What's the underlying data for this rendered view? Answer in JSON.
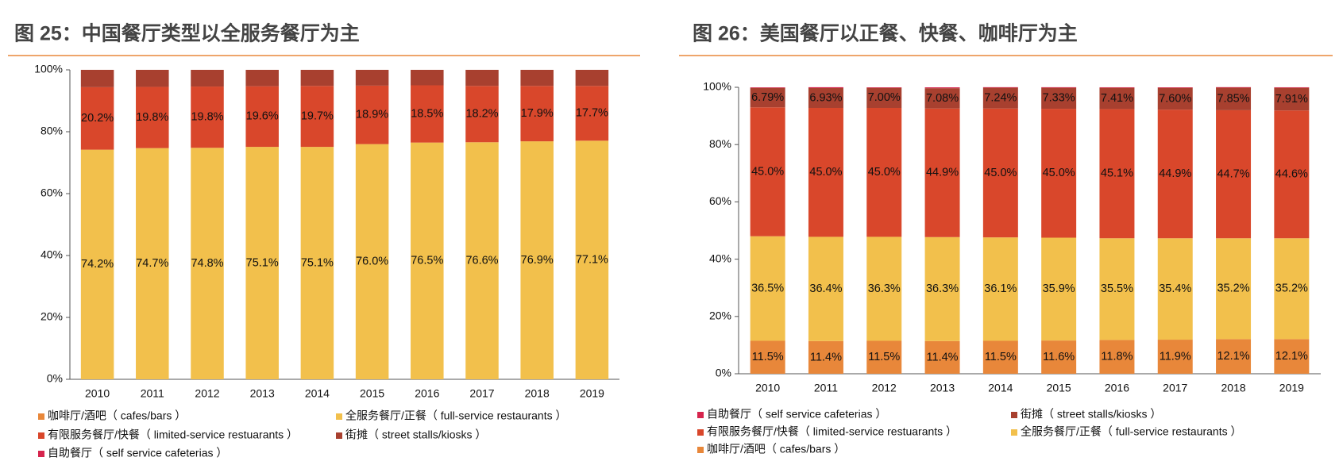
{
  "chart_data": [
    {
      "type": "stacked_bar",
      "title": "图 25：中国餐厅类型以全服务餐厅为主",
      "categories": [
        "2010",
        "2011",
        "2012",
        "2013",
        "2014",
        "2015",
        "2016",
        "2017",
        "2018",
        "2019"
      ],
      "ylim": [
        0,
        100
      ],
      "yticks": [
        {
          "value": 0,
          "label": "0%"
        },
        {
          "value": 20,
          "label": "20%"
        },
        {
          "value": 40,
          "label": "40%"
        },
        {
          "value": 60,
          "label": "60%"
        },
        {
          "value": 80,
          "label": "80%"
        },
        {
          "value": 100,
          "label": "100%"
        }
      ],
      "legend_reversed": false,
      "series": [
        {
          "name": "咖啡厅/酒吧（ cafes/bars ）",
          "color": "#e8873a",
          "values": [
            0,
            0,
            0,
            0,
            0,
            0,
            0,
            0,
            0,
            0
          ]
        },
        {
          "name": "全服务餐厅/正餐（ full-service restaurants ）",
          "color": "#f2c04c",
          "values": [
            74.2,
            74.7,
            74.8,
            75.1,
            75.1,
            76.0,
            76.5,
            76.6,
            76.9,
            77.1
          ],
          "value_labels": [
            "74.2%",
            "74.7%",
            "74.8%",
            "75.1%",
            "75.1%",
            "76.0%",
            "76.5%",
            "76.6%",
            "76.9%",
            "77.1%"
          ]
        },
        {
          "name": "有限服务餐厅/快餐（ limited-service restuarants ）",
          "color": "#d9472b",
          "values": [
            20.2,
            19.8,
            19.8,
            19.6,
            19.7,
            18.9,
            18.5,
            18.2,
            17.9,
            17.7
          ],
          "value_labels": [
            "20.2%",
            "19.8%",
            "19.8%",
            "19.6%",
            "19.7%",
            "18.9%",
            "18.5%",
            "18.2%",
            "17.9%",
            "17.7%"
          ]
        },
        {
          "name": "街摊（ street stalls/kiosks ）",
          "color": "#a8402f",
          "values": [
            5.6,
            5.5,
            5.4,
            5.3,
            5.2,
            5.1,
            5.0,
            5.2,
            5.2,
            5.2
          ]
        },
        {
          "name": "自助餐厅（ self service cafeterias ）",
          "color": "#d6254d",
          "values": [
            0,
            0,
            0,
            0,
            0,
            0,
            0,
            0,
            0,
            0
          ]
        }
      ]
    },
    {
      "type": "stacked_bar",
      "title": "图 26：美国餐厅以正餐、快餐、咖啡厅为主",
      "categories": [
        "2010",
        "2011",
        "2012",
        "2013",
        "2014",
        "2015",
        "2016",
        "2017",
        "2018",
        "2019"
      ],
      "ylim": [
        0,
        100
      ],
      "yticks": [
        {
          "value": 0,
          "label": "0%"
        },
        {
          "value": 20,
          "label": "20%"
        },
        {
          "value": 40,
          "label": "40%"
        },
        {
          "value": 60,
          "label": "60%"
        },
        {
          "value": 80,
          "label": "80%"
        },
        {
          "value": 100,
          "label": "100%"
        }
      ],
      "legend_reversed": true,
      "series": [
        {
          "name": "咖啡厅/酒吧（ cafes/bars ）",
          "color": "#e8873a",
          "values": [
            11.5,
            11.4,
            11.5,
            11.4,
            11.5,
            11.6,
            11.8,
            11.9,
            12.1,
            12.1
          ],
          "value_labels": [
            "11.5%",
            "11.4%",
            "11.5%",
            "11.4%",
            "11.5%",
            "11.6%",
            "11.8%",
            "11.9%",
            "12.1%",
            "12.1%"
          ]
        },
        {
          "name": "全服务餐厅/正餐（ full-service restaurants ）",
          "color": "#f2c04c",
          "values": [
            36.5,
            36.4,
            36.3,
            36.3,
            36.1,
            35.9,
            35.5,
            35.4,
            35.2,
            35.2
          ],
          "value_labels": [
            "36.5%",
            "36.4%",
            "36.3%",
            "36.3%",
            "36.1%",
            "35.9%",
            "35.5%",
            "35.4%",
            "35.2%",
            "35.2%"
          ]
        },
        {
          "name": "有限服务餐厅/快餐（ limited-service restuarants ）",
          "color": "#d9472b",
          "values": [
            45.0,
            45.0,
            45.0,
            44.9,
            45.0,
            45.0,
            45.1,
            44.9,
            44.7,
            44.6
          ],
          "value_labels": [
            "45.0%",
            "45.0%",
            "45.0%",
            "44.9%",
            "45.0%",
            "45.0%",
            "45.1%",
            "44.9%",
            "44.7%",
            "44.6%"
          ]
        },
        {
          "name": "街摊（ street stalls/kiosks ）",
          "color": "#a8402f",
          "values": [
            6.79,
            6.93,
            7.0,
            7.08,
            7.24,
            7.33,
            7.41,
            7.6,
            7.85,
            7.91
          ],
          "value_labels": [
            "6.79%",
            "6.93%",
            "7.00%",
            "7.08%",
            "7.24%",
            "7.33%",
            "7.41%",
            "7.60%",
            "7.85%",
            "7.91%"
          ]
        },
        {
          "name": "自助餐厅（ self service cafeterias ）",
          "color": "#d6254d",
          "values": [
            0.2,
            0.3,
            0.2,
            0.3,
            0.2,
            0.2,
            0.2,
            0.2,
            0.2,
            0.2
          ]
        }
      ]
    }
  ]
}
